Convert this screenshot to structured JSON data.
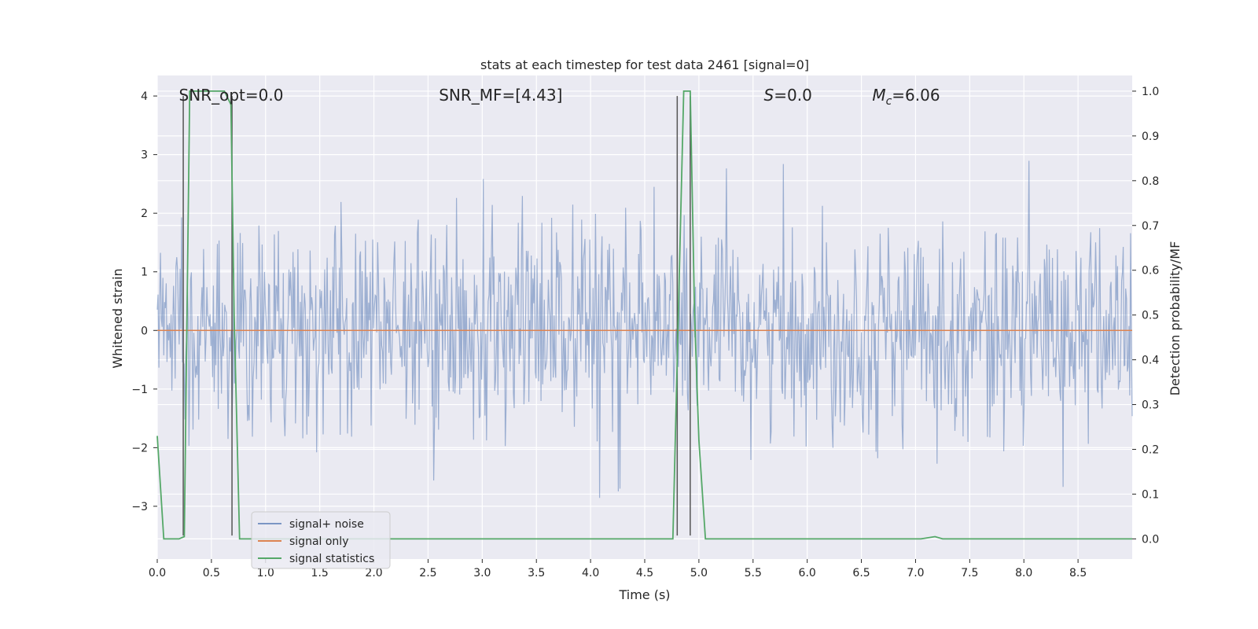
{
  "chart_data": {
    "type": "line",
    "title": "stats at each timestep for test data 2461 [signal=0]",
    "xlabel": "Time (s)",
    "ylabel": "Whitened strain",
    "y2label": "Detection probability/MF",
    "xlim": [
      0.0,
      9.0
    ],
    "ylim": [
      -3.9,
      4.35
    ],
    "y2lim": [
      -0.045,
      1.035
    ],
    "xticks": [
      0.0,
      0.5,
      1.0,
      1.5,
      2.0,
      2.5,
      3.0,
      3.5,
      4.0,
      4.5,
      5.0,
      5.5,
      6.0,
      6.5,
      7.0,
      7.5,
      8.0,
      8.5
    ],
    "xtick_labels": [
      "0.0",
      "0.5",
      "1.0",
      "1.5",
      "2.0",
      "2.5",
      "3.0",
      "3.5",
      "4.0",
      "4.5",
      "5.0",
      "5.5",
      "6.0",
      "6.5",
      "7.0",
      "7.5",
      "8.0",
      "8.5"
    ],
    "yticks": [
      4,
      3,
      2,
      1,
      0,
      -1,
      -2,
      -3
    ],
    "ytick_labels": [
      "4",
      "3",
      "2",
      "1",
      "0",
      "−1",
      "−2",
      "−3"
    ],
    "y2ticks": [
      1.0,
      0.9,
      0.8,
      0.7,
      0.6,
      0.5,
      0.4,
      0.3,
      0.2,
      0.1,
      0.0
    ],
    "y2tick_labels": [
      "1.0",
      "0.9",
      "0.8",
      "0.7",
      "0.6",
      "0.5",
      "0.4",
      "0.3",
      "0.2",
      "0.1",
      "0.0"
    ],
    "grid": true,
    "legend_placement": "lower-left",
    "annotations": [
      {
        "label": "SNR_opt=0.0",
        "x": 0.2,
        "y": 4.0
      },
      {
        "label": "SNR_MF=[4.43]",
        "x": 2.6,
        "y": 4.0
      },
      {
        "label": "S=0.0",
        "x": 5.6,
        "y": 4.0
      },
      {
        "label": "M_c=6.06",
        "x": 6.6,
        "y": 4.0
      }
    ],
    "series": [
      {
        "name": "signal+ noise",
        "color": "#4c72b0",
        "axis": "left",
        "noise_envelope": {
          "x_range": [
            0.0,
            9.0
          ],
          "core_abs": 1.0,
          "typical_peak": 2.4,
          "max_peak": 3.9,
          "min_peak": -3.3
        }
      },
      {
        "name": "signal only",
        "color": "#dd8452",
        "axis": "left",
        "x": [
          0.0,
          9.0
        ],
        "y": [
          0.0,
          0.0
        ]
      },
      {
        "name": "signal statistics",
        "color": "#55a868",
        "axis": "right",
        "x": [
          0.0,
          0.06,
          0.2,
          0.25,
          0.3,
          0.5,
          0.62,
          0.68,
          0.71,
          0.76,
          4.7,
          4.76,
          4.82,
          4.86,
          4.92,
          4.96,
          5.0,
          5.06,
          7.05,
          7.18,
          7.25,
          9.0
        ],
        "y": [
          0.23,
          0.0,
          0.0,
          0.005,
          1.0,
          1.0,
          1.0,
          0.97,
          0.5,
          0.0,
          0.0,
          0.0,
          0.6,
          1.0,
          1.0,
          0.5,
          0.22,
          0.0,
          0.0,
          0.005,
          0.0,
          0.0
        ]
      }
    ],
    "vertical_markers": {
      "color": "#555555",
      "lines": [
        {
          "x": 0.24,
          "y_from": -3.5,
          "y_to": 4.0
        },
        {
          "x": 0.69,
          "y_from": -3.5,
          "y_to": 4.0
        },
        {
          "x": 4.8,
          "y_from": -3.5,
          "y_to": 4.0
        },
        {
          "x": 4.92,
          "y_from": -3.5,
          "y_to": 4.0
        }
      ]
    }
  }
}
